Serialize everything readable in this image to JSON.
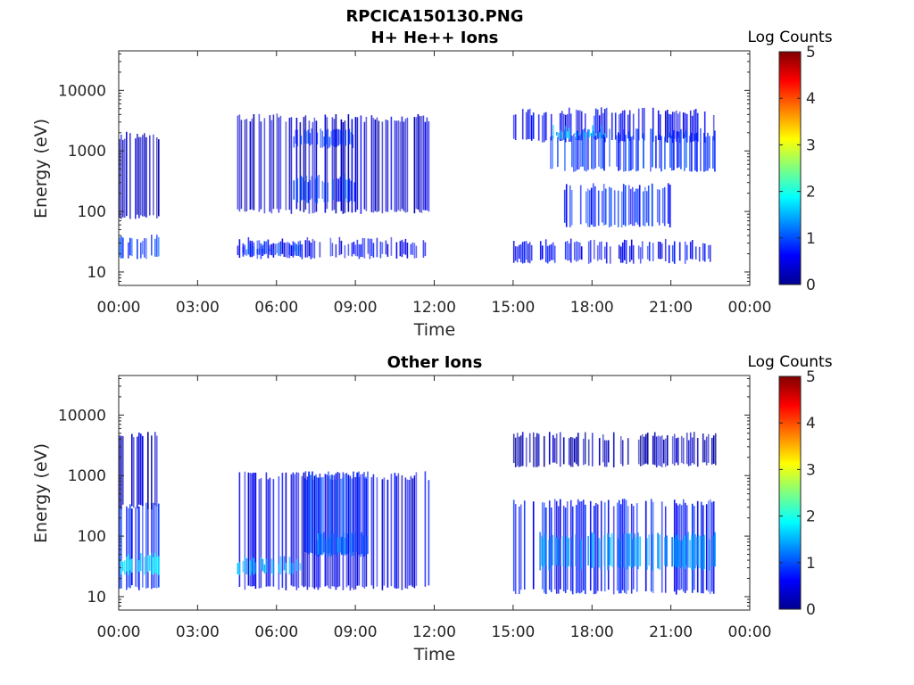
{
  "figure": {
    "title": "RPCICA150130.PNG"
  },
  "colors": {
    "background": "#ffffff",
    "axis": "#262626",
    "colormap": [
      "#00008f",
      "#0000ff",
      "#00ffff",
      "#ffff00",
      "#ff0000",
      "#800000"
    ]
  },
  "chart_data": [
    {
      "type": "heatmap",
      "title": "H+ He++ Ions",
      "xlabel": "Time",
      "ylabel": "Energy (eV)",
      "x_ticks": [
        "00:00",
        "03:00",
        "06:00",
        "09:00",
        "12:00",
        "15:00",
        "18:00",
        "21:00",
        "00:00"
      ],
      "xlim_hours": [
        0,
        24
      ],
      "y_scale": "log",
      "y_ticks": [
        "10",
        "100",
        "1000",
        "10000"
      ],
      "ylim_eV": [
        6,
        45000
      ],
      "colorbar": {
        "label": "Log Counts",
        "ticks": [
          "0",
          "1",
          "2",
          "3",
          "4",
          "5"
        ],
        "range": [
          0,
          5
        ]
      },
      "data_gap_hours": [
        [
          1.5,
          4.5
        ],
        [
          11.8,
          15.0
        ],
        [
          22.7,
          24.0
        ]
      ],
      "regions": [
        {
          "t0": 0.0,
          "t1": 1.5,
          "e0": 18,
          "e1": 35,
          "level": 0.9
        },
        {
          "t0": 0.0,
          "t1": 1.5,
          "e0": 80,
          "e1": 1800,
          "level": 0.3
        },
        {
          "t0": 4.5,
          "t1": 11.8,
          "e0": 18,
          "e1": 32,
          "level": 0.6
        },
        {
          "t0": 4.7,
          "t1": 7.0,
          "e0": 20,
          "e1": 28,
          "level": 0.9
        },
        {
          "t0": 4.5,
          "t1": 11.8,
          "e0": 100,
          "e1": 3500,
          "level": 0.35
        },
        {
          "t0": 6.5,
          "t1": 9.0,
          "e0": 150,
          "e1": 350,
          "level": 0.9
        },
        {
          "t0": 6.5,
          "t1": 9.0,
          "e0": 1200,
          "e1": 2000,
          "level": 0.8
        },
        {
          "t0": 15.0,
          "t1": 22.7,
          "e0": 15,
          "e1": 30,
          "level": 0.6
        },
        {
          "t0": 15.0,
          "t1": 22.7,
          "e0": 1500,
          "e1": 4500,
          "level": 0.55
        },
        {
          "t0": 16.4,
          "t1": 22.7,
          "e0": 500,
          "e1": 2000,
          "level": 0.85
        },
        {
          "t0": 16.8,
          "t1": 21.0,
          "e0": 60,
          "e1": 250,
          "level": 0.8
        },
        {
          "t0": 16.5,
          "t1": 18.5,
          "e0": 1700,
          "e1": 2300,
          "level": 1.6
        }
      ]
    },
    {
      "type": "heatmap",
      "title": "Other Ions",
      "xlabel": "Time",
      "ylabel": "Energy (eV)",
      "x_ticks": [
        "00:00",
        "03:00",
        "06:00",
        "09:00",
        "12:00",
        "15:00",
        "18:00",
        "21:00",
        "00:00"
      ],
      "xlim_hours": [
        0,
        24
      ],
      "y_scale": "log",
      "y_ticks": [
        "10",
        "100",
        "1000",
        "10000"
      ],
      "ylim_eV": [
        6,
        45000
      ],
      "colorbar": {
        "label": "Log Counts",
        "ticks": [
          "0",
          "1",
          "2",
          "3",
          "4",
          "5"
        ],
        "range": [
          0,
          5
        ]
      },
      "data_gap_hours": [
        [
          1.5,
          4.5
        ],
        [
          11.8,
          15.0
        ],
        [
          22.7,
          24.0
        ]
      ],
      "regions": [
        {
          "t0": 0.0,
          "t1": 1.5,
          "e0": 14,
          "e1": 300,
          "level": 0.8
        },
        {
          "t0": 0.0,
          "t1": 1.5,
          "e0": 25,
          "e1": 45,
          "level": 1.8
        },
        {
          "t0": 0.0,
          "t1": 1.5,
          "e0": 300,
          "e1": 4500,
          "level": 0.3
        },
        {
          "t0": 4.5,
          "t1": 11.8,
          "e0": 14,
          "e1": 1000,
          "level": 0.5
        },
        {
          "t0": 4.5,
          "t1": 7.0,
          "e0": 25,
          "e1": 40,
          "level": 1.5
        },
        {
          "t0": 7.0,
          "t1": 9.5,
          "e0": 50,
          "e1": 1000,
          "level": 0.9
        },
        {
          "t0": 7.5,
          "t1": 9.5,
          "e0": 50,
          "e1": 100,
          "level": 1.2
        },
        {
          "t0": 15.0,
          "t1": 22.7,
          "e0": 12,
          "e1": 350,
          "level": 0.7
        },
        {
          "t0": 16.0,
          "t1": 22.7,
          "e0": 30,
          "e1": 100,
          "level": 1.4
        },
        {
          "t0": 15.0,
          "t1": 22.7,
          "e0": 1500,
          "e1": 4500,
          "level": 0.2
        }
      ]
    }
  ]
}
